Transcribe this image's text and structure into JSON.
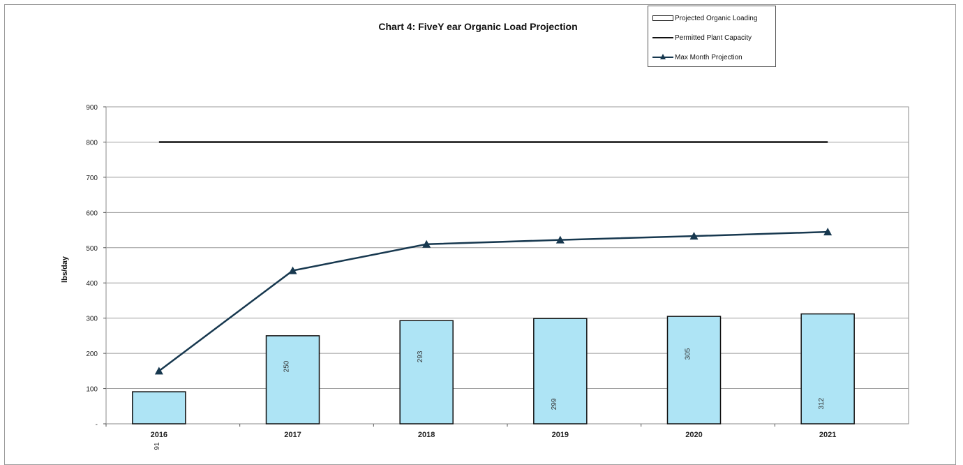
{
  "chart_data": {
    "type": "bar",
    "title": "Chart 4: FiveY ear Organic Load Projection",
    "xlabel": "",
    "ylabel": "lbs/day",
    "ylim": [
      0,
      900
    ],
    "yticks": [
      "-",
      "100",
      "200",
      "300",
      "400",
      "500",
      "600",
      "700",
      "800",
      "900"
    ],
    "categories": [
      "2016",
      "2017",
      "2018",
      "2019",
      "2020",
      "2021"
    ],
    "grid": true,
    "legend_position": "top-right",
    "series": [
      {
        "name": "Projected Organic Loading",
        "type": "bar",
        "values": [
          91,
          250,
          293,
          299,
          305,
          312
        ],
        "labels": [
          "91",
          "250",
          "293",
          "299",
          "305",
          "312"
        ],
        "color": "#aee4f5"
      },
      {
        "name": "Permitted Plant Capacity",
        "type": "line",
        "values": [
          800,
          800,
          800,
          800,
          800,
          800
        ],
        "color": "#111111"
      },
      {
        "name": "Max Month Projection",
        "type": "line",
        "marker": "triangle",
        "values": [
          150,
          435,
          510,
          522,
          533,
          545
        ],
        "color": "#17384f"
      }
    ]
  }
}
